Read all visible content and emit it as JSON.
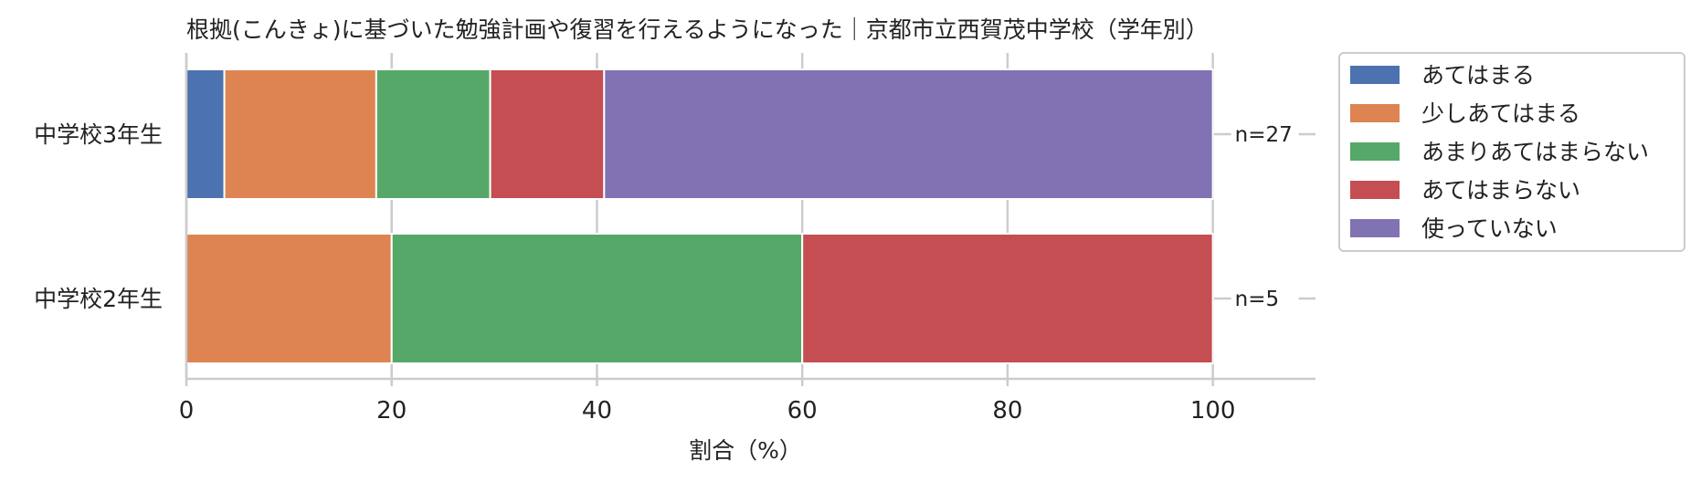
{
  "chart_data": {
    "type": "bar",
    "orientation": "horizontal",
    "stacked": true,
    "title": "根拠(こんきょ)に基づいた勉強計画や復習を行えるようになった｜京都市立西賀茂中学校（学年別）",
    "xlabel": "割合（%）",
    "ylabel": "",
    "xlim": [
      0,
      110
    ],
    "xticks": [
      0,
      20,
      40,
      60,
      80,
      100
    ],
    "xtick_labels": [
      "0",
      "20",
      "40",
      "60",
      "80",
      "100"
    ],
    "grid": true,
    "legend_position": "outside-right",
    "categories": [
      "中学校3年生",
      "中学校2年生"
    ],
    "n_labels": [
      "n=27",
      "n=5"
    ],
    "series": [
      {
        "name": "あてはまる",
        "color": "#4c72b0",
        "values": [
          3.7,
          0
        ]
      },
      {
        "name": "少しあてはまる",
        "color": "#dd8452",
        "values": [
          14.8,
          20
        ]
      },
      {
        "name": "あまりあてはまらない",
        "color": "#55a868",
        "values": [
          11.1,
          40
        ]
      },
      {
        "name": "あてはまらない",
        "color": "#c44e52",
        "values": [
          11.1,
          40
        ]
      },
      {
        "name": "使っていない",
        "color": "#8172b3",
        "values": [
          59.3,
          0
        ]
      }
    ]
  }
}
